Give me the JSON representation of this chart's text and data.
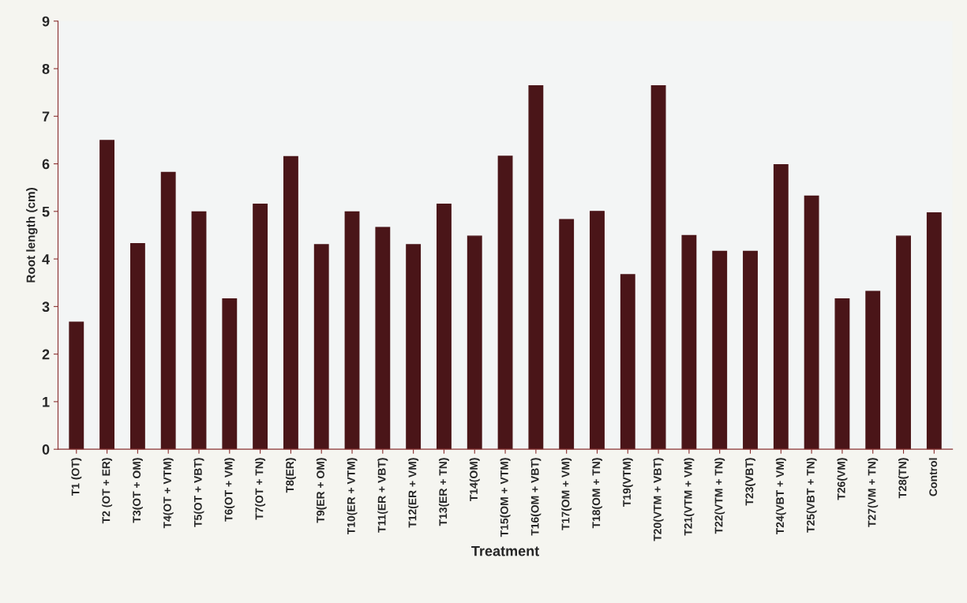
{
  "chart_data": {
    "type": "bar",
    "xlabel": "Treatment",
    "ylabel": "Root length (cm)",
    "categories": [
      "T1 (OT)",
      "T2 (OT + ER)",
      "T3(OT + OM)",
      "T4(OT + VTM)",
      "T5(OT + VBT)",
      "T6(OT + VM)",
      "T7(OT + TN)",
      "T8(ER)",
      "T9(ER + OM)",
      "T10(ER + VTM)",
      "T11(ER + VBT)",
      "T12(ER + VM)",
      "T13(ER + TN)",
      "T14(OM)",
      "T15(OM + VTM)",
      "T16(OM + VBT)",
      "T17(OM + VM)",
      "T18(OM + TN)",
      "T19(VTM)",
      "T20(VTM + VBT)",
      "T21(VTM + VM)",
      "T22(VTM + TN)",
      "T23(VBT)",
      "T24(VBT + VM)",
      "T25(VBT + TN)",
      "T26(VM)",
      "T27(VM + TN)",
      "T28(TN)",
      "Control"
    ],
    "values": [
      2.67,
      6.49,
      4.32,
      5.82,
      4.99,
      3.16,
      5.15,
      6.15,
      4.3,
      4.99,
      4.66,
      4.3,
      5.15,
      4.48,
      6.16,
      7.64,
      4.83,
      5.0,
      3.67,
      7.64,
      4.49,
      4.16,
      4.16,
      5.98,
      5.32,
      3.16,
      3.32,
      4.48,
      4.97
    ],
    "color": "#4a1518",
    "ylim": [
      0,
      9
    ],
    "yticks": [
      0,
      1,
      2,
      3,
      4,
      5,
      6,
      7,
      8,
      9
    ],
    "grid": false,
    "legend": false
  }
}
